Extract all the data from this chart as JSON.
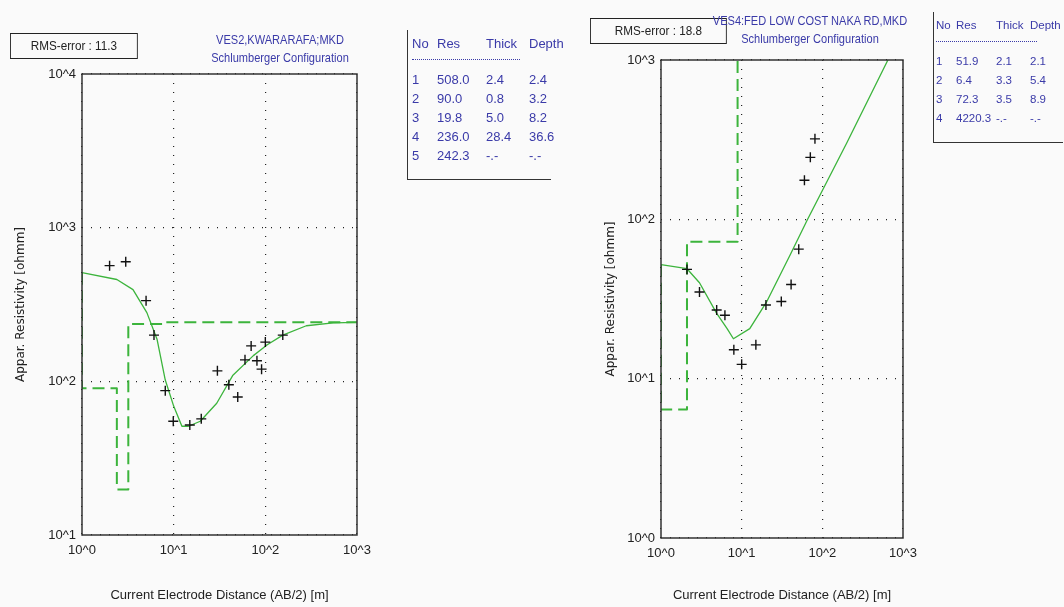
{
  "chart_data": [
    {
      "type": "line",
      "title": "VES2,KWARARAFA;MKD",
      "subtitle": "Schlumberger Configuration",
      "xlabel": "Current Electrode Distance (AB/2) [m]",
      "ylabel": "Appar. Resistivity [ohmm]",
      "log": "xy",
      "grid": true,
      "legend": false,
      "xlim": [
        1,
        1000
      ],
      "xticks": [
        {
          "value": 1,
          "label": "10^0"
        },
        {
          "value": 10,
          "label": "10^1"
        },
        {
          "value": 100,
          "label": "10^2"
        },
        {
          "value": 1000,
          "label": "10^3"
        }
      ],
      "ylim": [
        10,
        10000
      ],
      "yticks": [
        {
          "value": 10,
          "label": "10^1"
        },
        {
          "value": 100,
          "label": "10^2"
        },
        {
          "value": 1000,
          "label": "10^3"
        },
        {
          "value": 10000,
          "label": "10^4"
        }
      ],
      "annotations": [
        "RMS-error : 11.3",
        "No Res Thick Depth",
        "1 508.0 2.4 2.4",
        "2 90.0 0.8 3.2",
        "3 19.8 5.0 8.2",
        "4 236.0 28.4 36.6",
        "5 242.3 -.- -.-"
      ],
      "series": [
        {
          "type": "scatter",
          "marker": "cross",
          "color": "#111111",
          "x": [
            2.0,
            3.0,
            5.0,
            6.1,
            8.1,
            9.9,
            15,
            20,
            30,
            40,
            50,
            60,
            70,
            81,
            91,
            100,
            155
          ],
          "values": [
            566,
            600,
            335,
            200,
            87,
            55,
            52,
            57,
            117,
            95,
            79,
            138,
            170,
            136,
            120,
            180,
            200
          ]
        },
        {
          "type": "line",
          "marker": "none",
          "line_style": "solid",
          "color": "#3cb43c",
          "x": [
            1,
            2.4,
            3.6,
            5.1,
            6.6,
            8.1,
            10,
            12.3,
            14.5,
            19.5,
            29.5,
            44,
            74,
            105,
            155,
            280,
            550,
            1000
          ],
          "values": [
            510,
            460,
            395,
            280,
            187,
            102,
            69,
            51,
            51,
            55,
            72,
            109,
            147,
            173,
            200,
            230,
            240,
            242
          ]
        },
        {
          "type": "step",
          "marker": "none",
          "line_style": "dashed",
          "color": "#3cb43c",
          "x": [
            1,
            2.4,
            3.2,
            8.2,
            36.6,
            1000
          ],
          "values": [
            508.0,
            90.0,
            19.8,
            236.0,
            242.3,
            242.3
          ]
        }
      ]
    },
    {
      "type": "line",
      "title": "VES4:FED LOW COST NAKA RD,MKD",
      "subtitle": "Schlumberger Configuration",
      "xlabel": "Current Electrode Distance (AB/2) [m]",
      "ylabel": "Appar. Resistivity [ohmm]",
      "log": "xy",
      "grid": true,
      "legend": false,
      "xlim": [
        1,
        1000
      ],
      "xticks": [
        {
          "value": 1,
          "label": "10^0"
        },
        {
          "value": 10,
          "label": "10^1"
        },
        {
          "value": 100,
          "label": "10^2"
        },
        {
          "value": 1000,
          "label": "10^3"
        }
      ],
      "ylim": [
        1,
        1000
      ],
      "yticks": [
        {
          "value": 1,
          "label": "10^0"
        },
        {
          "value": 10,
          "label": "10^1"
        },
        {
          "value": 100,
          "label": "10^2"
        },
        {
          "value": 1000,
          "label": "10^3"
        }
      ],
      "annotations": [
        "RMS-error : 18.8",
        "No Res Thick Depth",
        "1 51.9 2.1 2.1",
        "2 6.4 3.3 5.4",
        "3 72.3 3.5 8.9",
        "4 4220.3 -.- -.-"
      ],
      "series": [
        {
          "type": "scatter",
          "marker": "cross",
          "color": "#111111",
          "x": [
            2.1,
            3.0,
            4.9,
            6.2,
            8.0,
            10,
            15,
            20,
            31,
            41,
            51,
            60,
            71,
            81
          ],
          "values": [
            48.5,
            35,
            27,
            25,
            15.2,
            12.3,
            16.3,
            29,
            30.5,
            39,
            65,
            176,
            245,
            320
          ]
        },
        {
          "type": "line",
          "marker": "none",
          "line_style": "solid",
          "color": "#3cb43c",
          "x": [
            1,
            2.1,
            3.0,
            4.9,
            6.6,
            7.9,
            12.6,
            20.5,
            40,
            65,
            200,
            650
          ],
          "values": [
            52,
            49,
            40,
            25.7,
            20.6,
            17.8,
            20.6,
            30.5,
            60,
            99,
            300,
            1000
          ]
        },
        {
          "type": "step",
          "marker": "none",
          "line_style": "dashed",
          "color": "#3cb43c",
          "x": [
            1,
            2.1,
            5.4,
            8.9,
            8.9
          ],
          "values": [
            51.9,
            6.4,
            72.3,
            72.3,
            1000
          ]
        }
      ]
    }
  ]
}
